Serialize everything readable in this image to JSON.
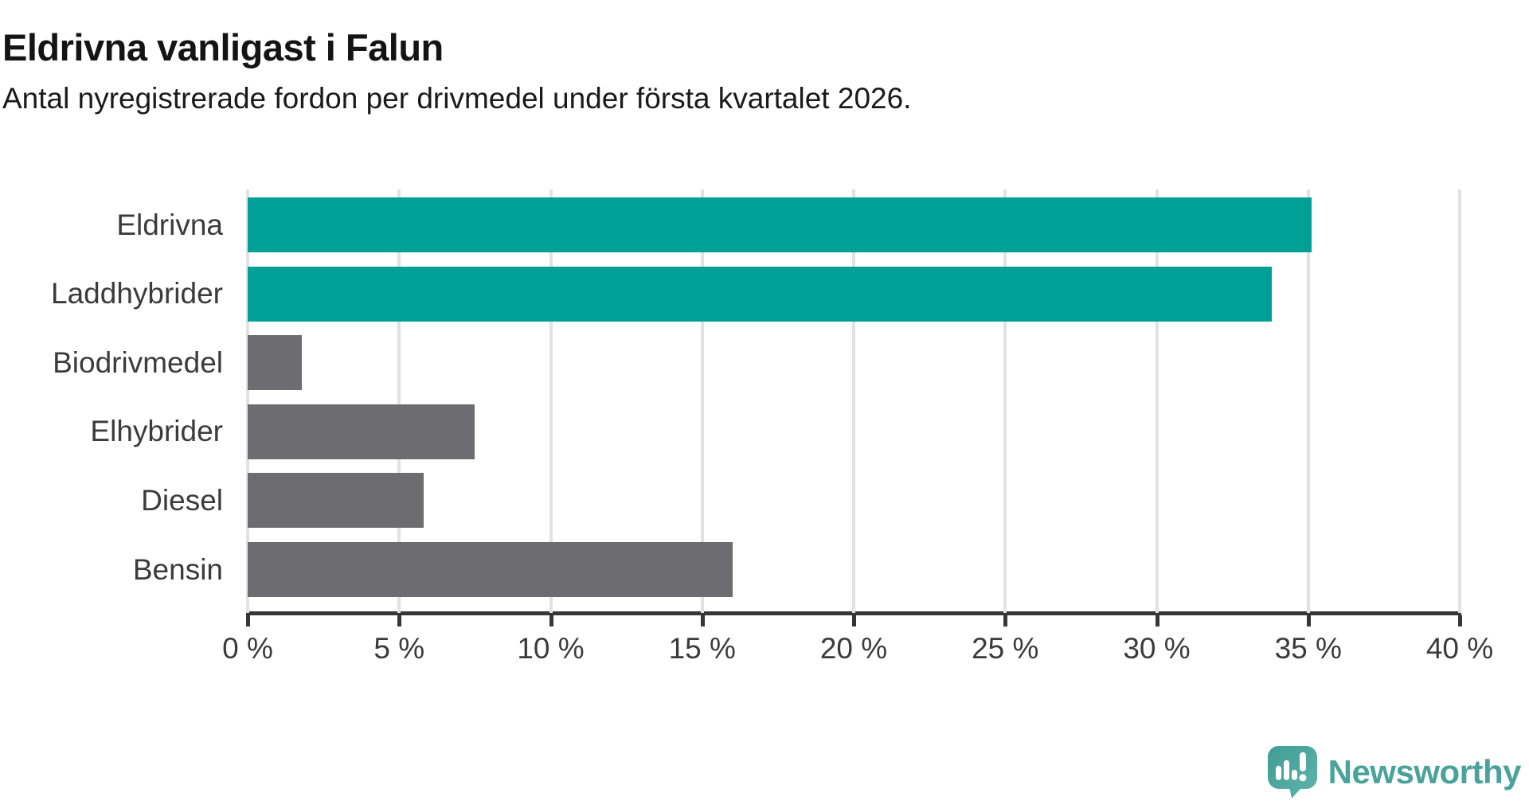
{
  "header": {
    "title": "Eldrivna vanligast i Falun",
    "subtitle": "Antal nyregistrerade fordon per drivmedel under första kvartalet 2026."
  },
  "chart_data": {
    "type": "bar",
    "orientation": "horizontal",
    "title": "Eldrivna vanligast i Falun",
    "subtitle": "Antal nyregistrerade fordon per drivmedel under första kvartalet 2026.",
    "categories": [
      "Eldrivna",
      "Laddhybrider",
      "Biodrivmedel",
      "Elhybrider",
      "Diesel",
      "Bensin"
    ],
    "values": [
      35.1,
      33.8,
      1.8,
      7.5,
      5.8,
      16.0
    ],
    "unit": "%",
    "bar_colors": [
      "#00a097",
      "#00a097",
      "#6c6c71",
      "#6c6c71",
      "#6c6c71",
      "#6c6c71"
    ],
    "xlabel": "",
    "ylabel": "",
    "xlim": [
      0,
      40
    ],
    "x_ticks": [
      0,
      5,
      10,
      15,
      20,
      25,
      30,
      35,
      40
    ],
    "x_tick_labels": [
      "0 %",
      "5 %",
      "10 %",
      "15 %",
      "20 %",
      "25 %",
      "30 %",
      "35 %",
      "40 %"
    ],
    "grid": true,
    "legend": false,
    "accent_color": "#00a097",
    "default_color": "#6c6c71",
    "axis_color": "#363636",
    "grid_color": "#e2e2e2",
    "label_color": "#3b3b3b"
  },
  "branding": {
    "logo_text": "Newsworthy",
    "logo_text_color": "#4aa39b",
    "logo_bubble_color_top": "#3f9d95",
    "logo_bubble_color_bottom": "#60b4ab",
    "logo_icon": "speech-bubble-bar-chart-exclamation"
  }
}
